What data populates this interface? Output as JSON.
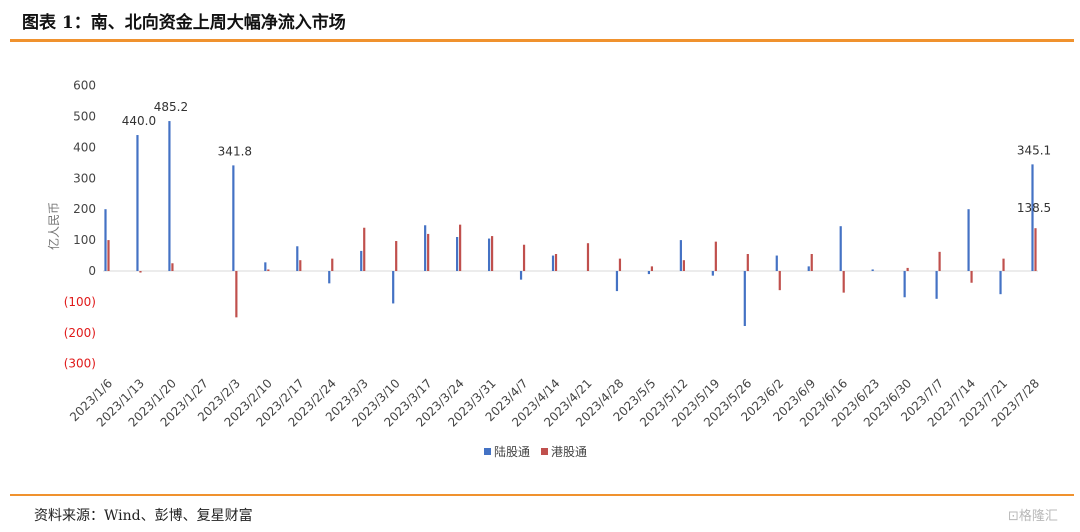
{
  "page": {
    "title": "图表 1：南、北向资金上周大幅净流入市场",
    "source": "资料来源：Wind、彭博、复星财富",
    "watermark": "格隆汇"
  },
  "colors": {
    "accent": "#f0922e",
    "north": "#4472c4",
    "south": "#c0504d",
    "negative_tick": "#e01a1a"
  },
  "chart_data": {
    "type": "bar",
    "ylabel": "亿人民币",
    "ylim": [
      -300,
      600
    ],
    "yticks": [
      {
        "value": 600,
        "label": "600"
      },
      {
        "value": 500,
        "label": "500"
      },
      {
        "value": 400,
        "label": "400"
      },
      {
        "value": 300,
        "label": "300"
      },
      {
        "value": 200,
        "label": "200"
      },
      {
        "value": 100,
        "label": "100"
      },
      {
        "value": 0,
        "label": "0"
      },
      {
        "value": -100,
        "label": "(100)"
      },
      {
        "value": -200,
        "label": "(200)"
      },
      {
        "value": -300,
        "label": "(300)"
      }
    ],
    "categories": [
      "2023/1/6",
      "2023/1/13",
      "2023/1/20",
      "2023/1/27",
      "2023/2/3",
      "2023/2/10",
      "2023/2/17",
      "2023/2/24",
      "2023/3/3",
      "2023/3/10",
      "2023/3/17",
      "2023/3/24",
      "2023/3/31",
      "2023/4/7",
      "2023/4/14",
      "2023/4/21",
      "2023/4/28",
      "2023/5/5",
      "2023/5/12",
      "2023/5/19",
      "2023/5/26",
      "2023/6/2",
      "2023/6/9",
      "2023/6/16",
      "2023/6/23",
      "2023/6/30",
      "2023/7/7",
      "2023/7/14",
      "2023/7/21",
      "2023/7/28"
    ],
    "series": [
      {
        "name": "陆股通",
        "values": [
          200,
          440.0,
          485.2,
          0,
          341.8,
          28,
          80,
          -40,
          65,
          -105,
          148,
          110,
          105,
          -28,
          50,
          0,
          -65,
          -10,
          100,
          -15,
          -178,
          50,
          15,
          145,
          5,
          -85,
          -90,
          200,
          -75,
          345.1
        ]
      },
      {
        "name": "港股通",
        "values": [
          100,
          -5,
          25,
          0,
          -150,
          5,
          35,
          40,
          140,
          97,
          120,
          150,
          113,
          85,
          55,
          90,
          40,
          15,
          35,
          95,
          55,
          -62,
          55,
          -70,
          0,
          10,
          62,
          -38,
          40,
          138.5
        ]
      }
    ],
    "data_labels": [
      {
        "category": "2023/1/13",
        "series": "陆股通",
        "text": "440.0"
      },
      {
        "category": "2023/1/20",
        "series": "陆股通",
        "text": "485.2"
      },
      {
        "category": "2023/2/3",
        "series": "陆股通",
        "text": "341.8"
      },
      {
        "category": "2023/7/28",
        "series": "陆股通",
        "text": "345.1"
      },
      {
        "category": "2023/7/28",
        "series": "港股通",
        "text": "138.5"
      }
    ],
    "legend": {
      "placement": "bottom-center"
    },
    "grid": false
  }
}
